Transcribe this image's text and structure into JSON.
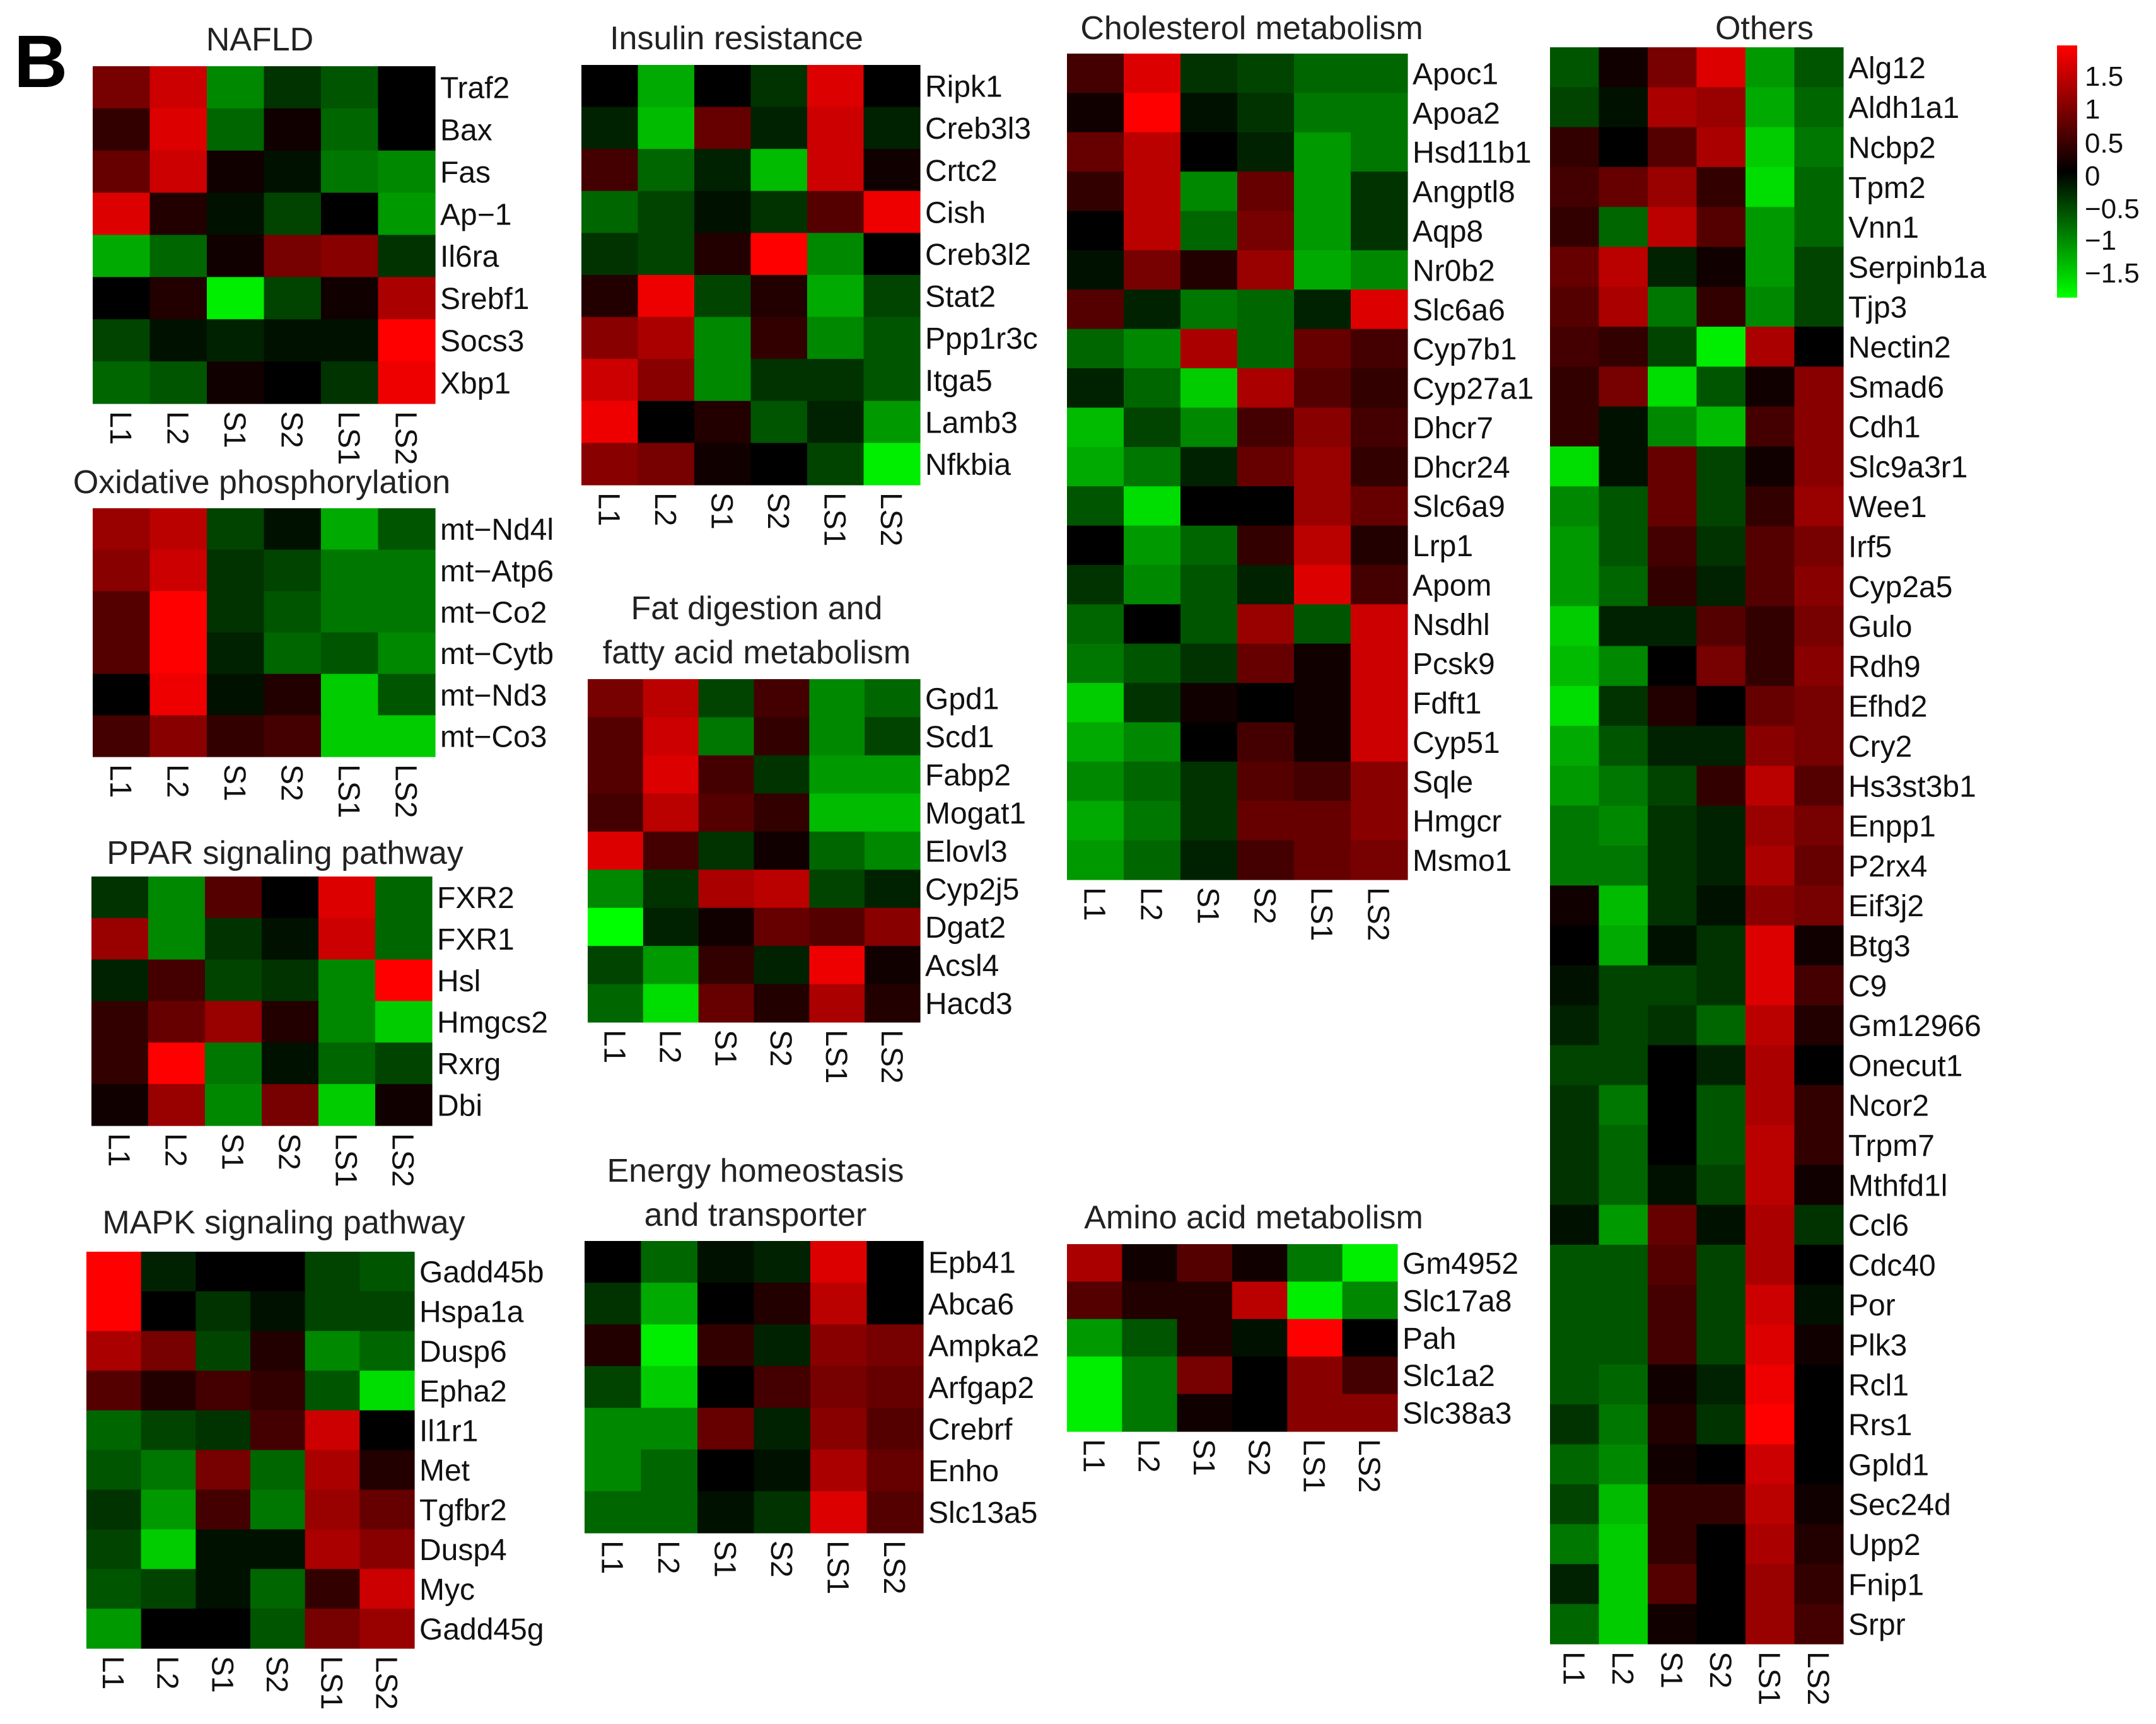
{
  "panel_label": "B",
  "conditions": [
    "L1",
    "L2",
    "S1",
    "S2",
    "LS1",
    "LS2"
  ],
  "colorbar": {
    "ticks": [
      "1.5",
      "1",
      "0.5",
      "0",
      "−0.5",
      "−1",
      "−1.5"
    ],
    "min": -1.5,
    "max": 1.5,
    "colors": {
      "high": "#ff0000",
      "mid": "#000000",
      "low": "#00ff00"
    }
  },
  "chart_data": [
    {
      "type": "heatmap",
      "title": "NAFLD",
      "columns": [
        "L1",
        "L2",
        "S1",
        "S2",
        "LS1",
        "LS2"
      ],
      "rows": [
        "Traf2",
        "Bax",
        "Fas",
        "Ap−1",
        "Il6ra",
        "Srebf1",
        "Socs3",
        "Xbp1"
      ],
      "values": [
        [
          0.7,
          1.2,
          -0.8,
          -0.3,
          -0.5,
          0.0
        ],
        [
          0.3,
          1.3,
          -0.6,
          0.1,
          -0.6,
          0.0
        ],
        [
          0.6,
          1.2,
          0.1,
          -0.1,
          -0.7,
          -0.8
        ],
        [
          1.3,
          0.2,
          -0.1,
          -0.4,
          0.0,
          -0.9
        ],
        [
          -1.0,
          -0.6,
          0.1,
          0.7,
          0.8,
          -0.3
        ],
        [
          0.0,
          0.2,
          -1.4,
          -0.4,
          0.1,
          1.0
        ],
        [
          -0.4,
          -0.1,
          -0.2,
          -0.1,
          -0.1,
          1.5
        ],
        [
          -0.6,
          -0.5,
          0.1,
          0.0,
          -0.3,
          1.4
        ]
      ]
    },
    {
      "type": "heatmap",
      "title": "Oxidative phosphorylation",
      "columns": [
        "L1",
        "L2",
        "S1",
        "S2",
        "LS1",
        "LS2"
      ],
      "rows": [
        "mt−Nd4l",
        "mt−Atp6",
        "mt−Co2",
        "mt−Cytb",
        "mt−Nd3",
        "mt−Co3"
      ],
      "values": [
        [
          0.9,
          1.1,
          -0.4,
          -0.1,
          -1.0,
          -0.5
        ],
        [
          0.8,
          1.2,
          -0.3,
          -0.4,
          -0.7,
          -0.7
        ],
        [
          0.5,
          1.5,
          -0.3,
          -0.5,
          -0.7,
          -0.7
        ],
        [
          0.5,
          1.5,
          -0.2,
          -0.6,
          -0.5,
          -0.8
        ],
        [
          0.0,
          1.4,
          -0.1,
          0.2,
          -1.2,
          -0.5
        ],
        [
          0.4,
          0.8,
          0.3,
          0.4,
          -1.2,
          -1.2
        ]
      ]
    },
    {
      "type": "heatmap",
      "title": "PPAR signaling pathway",
      "columns": [
        "L1",
        "L2",
        "S1",
        "S2",
        "LS1",
        "LS2"
      ],
      "rows": [
        "FXR2",
        "FXR1",
        "Hsl",
        "Hmgcs2",
        "Rxrg",
        "Dbi"
      ],
      "values": [
        [
          -0.3,
          -0.8,
          0.5,
          0.0,
          1.3,
          -0.6
        ],
        [
          0.9,
          -0.8,
          -0.3,
          -0.1,
          1.2,
          -0.6
        ],
        [
          -0.2,
          0.4,
          -0.4,
          -0.3,
          -0.8,
          1.6
        ],
        [
          0.3,
          0.6,
          0.9,
          0.2,
          -0.8,
          -1.2
        ],
        [
          0.3,
          1.5,
          -0.7,
          -0.1,
          -0.6,
          -0.4
        ],
        [
          0.1,
          0.9,
          -0.8,
          0.7,
          -1.2,
          0.1
        ]
      ]
    },
    {
      "type": "heatmap",
      "title": "MAPK signaling pathway",
      "columns": [
        "L1",
        "L2",
        "S1",
        "S2",
        "LS1",
        "LS2"
      ],
      "rows": [
        "Gadd45b",
        "Hspa1a",
        "Dusp6",
        "Epha2",
        "Il1r1",
        "Met",
        "Tgfbr2",
        "Dusp4",
        "Myc",
        "Gadd45g"
      ],
      "values": [
        [
          1.5,
          -0.2,
          0.0,
          0.0,
          -0.4,
          -0.5
        ],
        [
          1.5,
          0.0,
          -0.3,
          -0.1,
          -0.4,
          -0.4
        ],
        [
          1.0,
          0.7,
          -0.4,
          0.2,
          -0.8,
          -0.6
        ],
        [
          0.5,
          0.2,
          0.4,
          0.3,
          -0.5,
          -1.3
        ],
        [
          -0.6,
          -0.4,
          -0.3,
          0.4,
          1.2,
          0.0
        ],
        [
          -0.5,
          -0.7,
          0.7,
          -0.6,
          1.0,
          0.2
        ],
        [
          -0.3,
          -0.9,
          0.4,
          -0.7,
          0.9,
          0.6
        ],
        [
          -0.4,
          -1.2,
          -0.1,
          -0.1,
          1.0,
          0.8
        ],
        [
          -0.5,
          -0.4,
          -0.1,
          -0.6,
          0.3,
          1.2
        ],
        [
          -0.9,
          0.0,
          0.0,
          -0.5,
          0.7,
          0.9
        ]
      ]
    },
    {
      "type": "heatmap",
      "title": "Insulin resistance",
      "columns": [
        "L1",
        "L2",
        "S1",
        "S2",
        "LS1",
        "LS2"
      ],
      "rows": [
        "Ripk1",
        "Creb3l3",
        "Crtc2",
        "Cish",
        "Creb3l2",
        "Stat2",
        "Ppp1r3c",
        "Itga5",
        "Lamb3",
        "Nfkbia"
      ],
      "values": [
        [
          0.0,
          -1.0,
          0.0,
          -0.3,
          1.3,
          0.0
        ],
        [
          -0.2,
          -1.1,
          0.6,
          -0.2,
          1.2,
          -0.2
        ],
        [
          0.4,
          -0.6,
          -0.2,
          -1.1,
          1.2,
          0.1
        ],
        [
          -0.6,
          -0.4,
          -0.1,
          -0.3,
          0.5,
          1.4
        ],
        [
          -0.3,
          -0.4,
          0.2,
          1.5,
          -0.8,
          0.0
        ],
        [
          0.2,
          1.4,
          -0.4,
          0.2,
          -1.0,
          -0.4
        ],
        [
          0.8,
          1.0,
          -0.8,
          0.3,
          -0.8,
          -0.5
        ],
        [
          1.2,
          0.8,
          -0.8,
          -0.3,
          -0.3,
          -0.5
        ],
        [
          1.4,
          0.0,
          0.2,
          -0.5,
          -0.2,
          -0.9
        ],
        [
          0.8,
          0.7,
          0.1,
          0.0,
          -0.4,
          -1.4
        ]
      ]
    },
    {
      "type": "heatmap",
      "title": "Fat digestion and fatty acid metabolism",
      "title_lines": [
        "Fat digestion and",
        "fatty acid metabolism"
      ],
      "columns": [
        "L1",
        "L2",
        "S1",
        "S2",
        "LS1",
        "LS2"
      ],
      "rows": [
        "Gpd1",
        "Scd1",
        "Fabp2",
        "Mogat1",
        "Elovl3",
        "Cyp2j5",
        "Dgat2",
        "Acsl4",
        "Hacd3"
      ],
      "values": [
        [
          0.7,
          1.1,
          -0.4,
          0.4,
          -0.8,
          -0.6
        ],
        [
          0.5,
          1.2,
          -0.7,
          0.3,
          -0.8,
          -0.4
        ],
        [
          0.5,
          1.3,
          0.4,
          -0.3,
          -0.9,
          -0.9
        ],
        [
          0.4,
          1.1,
          0.5,
          0.3,
          -1.1,
          -1.1
        ],
        [
          1.3,
          0.4,
          -0.3,
          0.1,
          -0.6,
          -0.8
        ],
        [
          -0.8,
          -0.3,
          1.0,
          1.1,
          -0.4,
          -0.2
        ],
        [
          -1.5,
          -0.2,
          0.1,
          0.6,
          0.5,
          0.8
        ],
        [
          -0.4,
          -0.9,
          0.3,
          -0.2,
          1.4,
          0.1
        ],
        [
          -0.6,
          -1.3,
          0.6,
          0.2,
          1.0,
          0.2
        ]
      ]
    },
    {
      "type": "heatmap",
      "title": "Energy homeostasis and transporter",
      "title_lines": [
        "Energy homeostasis",
        "and transporter"
      ],
      "columns": [
        "L1",
        "L2",
        "S1",
        "S2",
        "LS1",
        "LS2"
      ],
      "rows": [
        "Epb41",
        "Abca6",
        "Ampka2",
        "Arfgap2",
        "Crebrf",
        "Enho",
        "Slc13a5"
      ],
      "values": [
        [
          0.0,
          -0.6,
          -0.1,
          -0.2,
          1.3,
          0.0
        ],
        [
          -0.3,
          -1.0,
          0.0,
          0.2,
          1.1,
          0.0
        ],
        [
          0.2,
          -1.4,
          0.3,
          -0.2,
          0.8,
          0.7
        ],
        [
          -0.4,
          -1.2,
          0.0,
          0.4,
          0.7,
          0.6
        ],
        [
          -0.8,
          -0.8,
          0.6,
          -0.2,
          0.8,
          0.5
        ],
        [
          -0.8,
          -0.6,
          0.0,
          -0.1,
          1.0,
          0.6
        ],
        [
          -0.6,
          -0.6,
          -0.1,
          -0.3,
          1.3,
          0.5
        ]
      ]
    },
    {
      "type": "heatmap",
      "title": "Cholesterol metabolism",
      "columns": [
        "L1",
        "L2",
        "S1",
        "S2",
        "LS1",
        "LS2"
      ],
      "rows": [
        "Apoc1",
        "Apoa2",
        "Hsd11b1",
        "Angptl8",
        "Aqp8",
        "Nr0b2",
        "Slc6a6",
        "Cyp7b1",
        "Cyp27a1",
        "Dhcr7",
        "Dhcr24",
        "Slc6a9",
        "Lrp1",
        "Apom",
        "Nsdhl",
        "Pcsk9",
        "Fdft1",
        "Cyp51",
        "Sqle",
        "Hmgcr",
        "Msmo1"
      ],
      "values": [
        [
          0.4,
          1.3,
          -0.3,
          -0.4,
          -0.6,
          -0.6
        ],
        [
          0.1,
          1.5,
          -0.1,
          -0.3,
          -0.7,
          -0.7
        ],
        [
          0.6,
          1.1,
          0.0,
          -0.2,
          -0.9,
          -0.7
        ],
        [
          0.3,
          1.1,
          -0.8,
          0.6,
          -0.9,
          -0.3
        ],
        [
          0.0,
          1.1,
          -0.6,
          0.7,
          -0.9,
          -0.3
        ],
        [
          -0.1,
          0.7,
          0.2,
          0.9,
          -1.0,
          -0.8
        ],
        [
          0.5,
          -0.2,
          -0.7,
          -0.6,
          -0.2,
          1.3
        ],
        [
          -0.6,
          -0.8,
          1.0,
          -0.6,
          0.6,
          0.4
        ],
        [
          -0.2,
          -0.6,
          -1.2,
          1.0,
          0.5,
          0.3
        ],
        [
          -1.1,
          -0.4,
          -0.8,
          0.4,
          0.8,
          0.4
        ],
        [
          -1.0,
          -0.7,
          -0.2,
          0.6,
          0.9,
          0.3
        ],
        [
          -0.5,
          -1.3,
          0.0,
          0.0,
          0.9,
          0.6
        ],
        [
          0.0,
          -0.9,
          -0.6,
          0.3,
          1.1,
          0.2
        ],
        [
          -0.3,
          -0.8,
          -0.5,
          -0.2,
          1.3,
          0.4
        ],
        [
          -0.6,
          0.0,
          -0.5,
          0.9,
          -0.5,
          1.2
        ],
        [
          -0.7,
          -0.5,
          -0.3,
          0.6,
          0.1,
          1.2
        ],
        [
          -1.2,
          -0.3,
          0.1,
          0.0,
          0.1,
          1.2
        ],
        [
          -1.0,
          -0.8,
          0.0,
          0.4,
          0.1,
          1.2
        ],
        [
          -0.8,
          -0.6,
          -0.3,
          0.5,
          0.4,
          0.8
        ],
        [
          -1.0,
          -0.7,
          -0.3,
          0.6,
          0.6,
          0.8
        ],
        [
          -0.9,
          -0.6,
          -0.2,
          0.4,
          0.6,
          0.7
        ]
      ]
    },
    {
      "type": "heatmap",
      "title": "Amino acid metabolism",
      "columns": [
        "L1",
        "L2",
        "S1",
        "S2",
        "LS1",
        "LS2"
      ],
      "rows": [
        "Gm4952",
        "Slc17a8",
        "Pah",
        "Slc1a2",
        "Slc38a3"
      ],
      "values": [
        [
          1.0,
          0.1,
          0.5,
          0.1,
          -0.7,
          -1.4
        ],
        [
          0.5,
          0.2,
          0.2,
          1.1,
          -1.4,
          -0.8
        ],
        [
          -0.9,
          -0.5,
          0.2,
          -0.1,
          1.5,
          0.0
        ],
        [
          -1.4,
          -0.7,
          0.7,
          0.0,
          0.8,
          0.4
        ],
        [
          -1.4,
          -0.7,
          0.1,
          0.0,
          0.8,
          0.8
        ]
      ]
    },
    {
      "type": "heatmap",
      "title": "Others",
      "columns": [
        "L1",
        "L2",
        "S1",
        "S2",
        "LS1",
        "LS2"
      ],
      "rows": [
        "Alg12",
        "Aldh1a1",
        "Ncbp2",
        "Tpm2",
        "Vnn1",
        "Serpinb1a",
        "Tjp3",
        "Nectin2",
        "Smad6",
        "Cdh1",
        "Slc9a3r1",
        "Wee1",
        "Irf5",
        "Cyp2a5",
        "Gulo",
        "Rdh9",
        "Efhd2",
        "Cry2",
        "Hs3st3b1",
        "Enpp1",
        "P2rx4",
        "Eif3j2",
        "Btg3",
        "C9",
        "Gm12966",
        "Onecut1",
        "Ncor2",
        "Trpm7",
        "Mthfd1l",
        "Ccl6",
        "Cdc40",
        "Por",
        "Plk3",
        "Rcl1",
        "Rrs1",
        "Gpld1",
        "Sec24d",
        "Upp2",
        "Fnip1",
        "Srpr"
      ],
      "values": [
        [
          -0.5,
          0.1,
          0.7,
          1.3,
          -0.9,
          -0.5
        ],
        [
          -0.4,
          -0.1,
          1.0,
          0.9,
          -1.0,
          -0.6
        ],
        [
          0.3,
          0.0,
          0.5,
          1.0,
          -1.2,
          -0.7
        ],
        [
          0.4,
          0.6,
          0.9,
          0.3,
          -1.3,
          -0.6
        ],
        [
          0.3,
          -0.6,
          1.1,
          0.5,
          -0.9,
          -0.6
        ],
        [
          0.6,
          1.1,
          -0.2,
          0.1,
          -0.9,
          -0.4
        ],
        [
          0.5,
          1.0,
          -0.7,
          0.3,
          -0.8,
          -0.4
        ],
        [
          0.4,
          0.3,
          -0.4,
          -1.4,
          1.0,
          0.0
        ],
        [
          0.3,
          0.7,
          -1.3,
          -0.5,
          0.1,
          0.8
        ],
        [
          0.3,
          -0.1,
          -0.8,
          -1.1,
          0.4,
          0.8
        ],
        [
          -1.3,
          -0.1,
          0.6,
          -0.4,
          0.1,
          0.8
        ],
        [
          -0.8,
          -0.5,
          0.6,
          -0.4,
          0.3,
          0.9
        ],
        [
          -0.9,
          -0.5,
          0.4,
          -0.3,
          0.5,
          0.7
        ],
        [
          -0.9,
          -0.6,
          0.3,
          -0.2,
          0.5,
          0.8
        ],
        [
          -1.2,
          -0.2,
          -0.2,
          0.5,
          0.3,
          0.7
        ],
        [
          -1.1,
          -0.8,
          0.0,
          0.7,
          0.3,
          0.8
        ],
        [
          -1.3,
          -0.3,
          0.2,
          0.0,
          0.6,
          0.7
        ],
        [
          -1.0,
          -0.5,
          -0.2,
          -0.2,
          0.8,
          0.7
        ],
        [
          -0.9,
          -0.7,
          -0.4,
          0.3,
          1.1,
          0.5
        ],
        [
          -0.7,
          -0.8,
          -0.3,
          -0.2,
          0.9,
          0.7
        ],
        [
          -0.7,
          -0.7,
          -0.3,
          -0.2,
          1.0,
          0.6
        ],
        [
          0.1,
          -1.1,
          -0.3,
          -0.1,
          0.8,
          0.7
        ],
        [
          0.0,
          -1.0,
          -0.1,
          -0.3,
          1.3,
          0.1
        ],
        [
          -0.1,
          -0.4,
          -0.4,
          -0.3,
          1.3,
          0.4
        ],
        [
          -0.2,
          -0.4,
          -0.3,
          -0.6,
          1.1,
          0.2
        ],
        [
          -0.4,
          -0.4,
          0.0,
          -0.2,
          1.0,
          0.0
        ],
        [
          -0.3,
          -0.7,
          0.0,
          -0.5,
          1.0,
          0.3
        ],
        [
          -0.3,
          -0.6,
          0.0,
          -0.5,
          1.1,
          0.3
        ],
        [
          -0.3,
          -0.6,
          -0.1,
          -0.4,
          1.1,
          0.1
        ],
        [
          -0.1,
          -0.9,
          0.6,
          -0.1,
          1.0,
          -0.3
        ],
        [
          -0.5,
          -0.5,
          0.5,
          -0.4,
          1.0,
          0.0
        ],
        [
          -0.5,
          -0.5,
          0.4,
          -0.4,
          1.2,
          -0.1
        ],
        [
          -0.5,
          -0.5,
          0.4,
          -0.4,
          1.3,
          0.1
        ],
        [
          -0.5,
          -0.6,
          0.1,
          -0.2,
          1.4,
          0.0
        ],
        [
          -0.3,
          -0.7,
          0.2,
          -0.3,
          1.5,
          0.0
        ],
        [
          -0.6,
          -0.8,
          0.1,
          0.0,
          1.2,
          0.0
        ],
        [
          -0.4,
          -1.1,
          0.3,
          0.3,
          1.1,
          0.1
        ],
        [
          -0.7,
          -1.2,
          0.3,
          0.0,
          1.0,
          0.2
        ],
        [
          -0.2,
          -1.2,
          0.5,
          0.0,
          0.9,
          0.3
        ],
        [
          -0.6,
          -1.2,
          0.1,
          0.0,
          0.9,
          0.4
        ]
      ]
    }
  ]
}
